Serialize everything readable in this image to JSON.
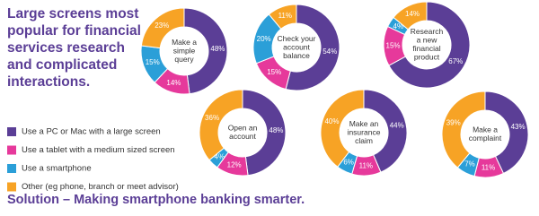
{
  "headline": [
    "Large screens most",
    "popular for financial",
    "services research",
    "and complicated",
    "interactions."
  ],
  "legend": [
    {
      "name": "Use a PC or Mac with a large screen",
      "color": "#5b3e96"
    },
    {
      "name": "Use a tablet with a medium sized screen",
      "color": "#e6399b"
    },
    {
      "name": "Use a smartphone",
      "color": "#2b9fd8"
    },
    {
      "name": "Other (eg phone, branch or meet advisor)",
      "color": "#f7a325"
    }
  ],
  "footer": "Solution – Making smartphone banking smarter.",
  "chart_data": [
    {
      "type": "donut",
      "title": [
        "Make a",
        "simple",
        "query"
      ],
      "values": [
        48,
        14,
        15,
        23
      ],
      "value_labels": [
        "48%",
        "14%",
        "15%",
        "23%"
      ]
    },
    {
      "type": "donut",
      "title": [
        "Check your",
        "account",
        "balance"
      ],
      "values": [
        54,
        15,
        20,
        11
      ],
      "value_labels": [
        "54%",
        "15%",
        "20%",
        "11%"
      ]
    },
    {
      "type": "donut",
      "title": [
        "Research",
        "a new",
        "financial",
        "product"
      ],
      "values": [
        67,
        15,
        4,
        14
      ],
      "value_labels": [
        "67%",
        "15%",
        "4%",
        "14%"
      ]
    },
    {
      "type": "donut",
      "title": [
        "Open an",
        "account"
      ],
      "values": [
        48,
        12,
        4,
        36
      ],
      "value_labels": [
        "48%",
        "12%",
        "4%",
        "36%"
      ]
    },
    {
      "type": "donut",
      "title": [
        "Make an",
        "insurance",
        "claim"
      ],
      "values": [
        44,
        11,
        6,
        40
      ],
      "value_labels": [
        "44%",
        "11%",
        "6%",
        "40%"
      ]
    },
    {
      "type": "donut",
      "title": [
        "Make a",
        "complaint"
      ],
      "values": [
        43,
        11,
        7,
        39
      ],
      "value_labels": [
        "43%",
        "11%",
        "7%",
        "39%"
      ]
    }
  ]
}
